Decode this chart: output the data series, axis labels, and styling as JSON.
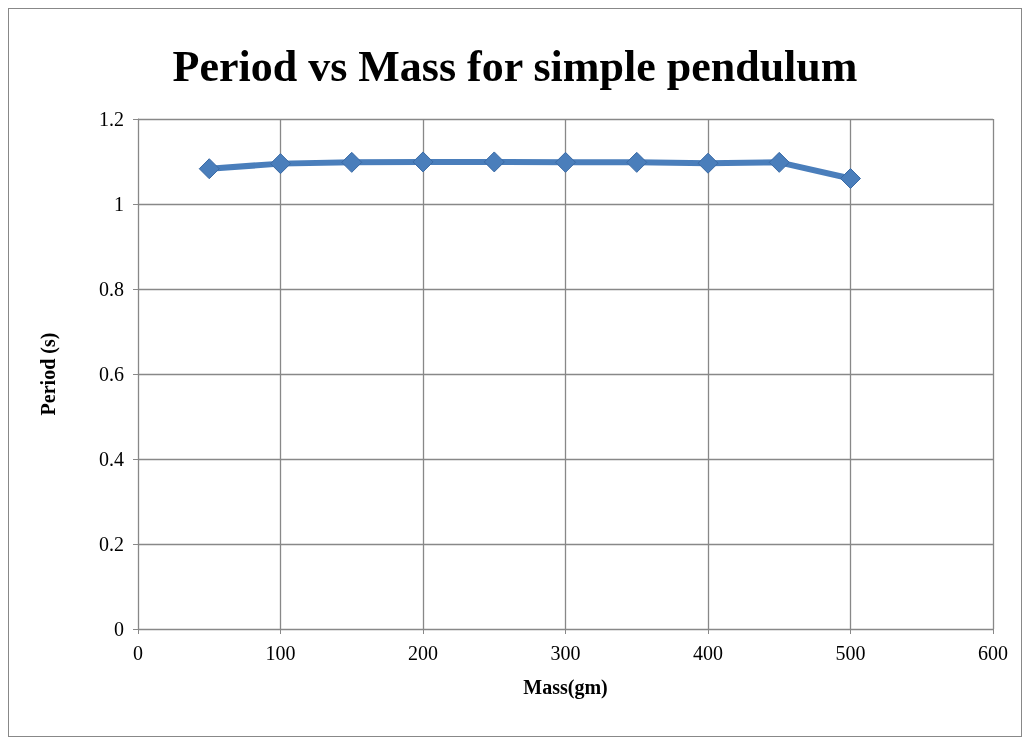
{
  "chart_data": {
    "type": "line",
    "title": "Period vs Mass for simple pendulum",
    "xlabel": "Mass(gm)",
    "ylabel": "Period (s)",
    "x": [
      50,
      100,
      150,
      200,
      250,
      300,
      350,
      400,
      450,
      500
    ],
    "series": [
      {
        "color": "#4a7ebb",
        "values": [
          1.083,
          1.095,
          1.098,
          1.099,
          1.099,
          1.098,
          1.098,
          1.096,
          1.098,
          1.06
        ]
      }
    ],
    "xlim": [
      0,
      600
    ],
    "xticks": [
      0,
      100,
      200,
      300,
      400,
      500,
      600
    ],
    "ylim": [
      0,
      1.2
    ],
    "yticks": [
      0,
      0.2,
      0.4,
      0.6,
      0.8,
      1,
      1.2
    ],
    "grid": true,
    "marker": "diamond",
    "line_style": "solid"
  }
}
